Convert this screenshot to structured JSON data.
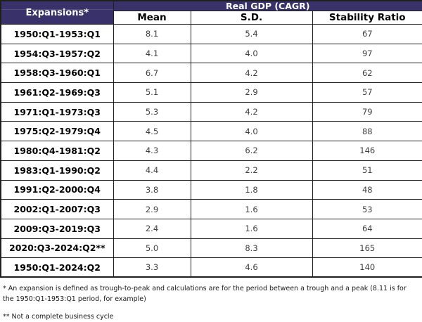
{
  "chart_data": {
    "type": "table",
    "corner_header": "Expansions*",
    "group_header": "Real GDP (CAGR)",
    "columns": [
      "Mean",
      "S.D.",
      "Stability Ratio"
    ],
    "rows": [
      {
        "period": "1950:Q1-1953:Q1",
        "mean": "8.1",
        "sd": "5.4",
        "stability_ratio": "67"
      },
      {
        "period": "1954:Q3-1957:Q2",
        "mean": "4.1",
        "sd": "4.0",
        "stability_ratio": "97"
      },
      {
        "period": "1958:Q3-1960:Q1",
        "mean": "6.7",
        "sd": "4.2",
        "stability_ratio": "62"
      },
      {
        "period": "1961:Q2-1969:Q3",
        "mean": "5.1",
        "sd": "2.9",
        "stability_ratio": "57"
      },
      {
        "period": "1971:Q1-1973:Q3",
        "mean": "5.3",
        "sd": "4.2",
        "stability_ratio": "79"
      },
      {
        "period": "1975:Q2-1979:Q4",
        "mean": "4.5",
        "sd": "4.0",
        "stability_ratio": "88"
      },
      {
        "period": "1980:Q4-1981:Q2",
        "mean": "4.3",
        "sd": "6.2",
        "stability_ratio": "146"
      },
      {
        "period": "1983:Q1-1990:Q2",
        "mean": "4.4",
        "sd": "2.2",
        "stability_ratio": "51"
      },
      {
        "period": "1991:Q2-2000:Q4",
        "mean": "3.8",
        "sd": "1.8",
        "stability_ratio": "48"
      },
      {
        "period": "2002:Q1-2007:Q3",
        "mean": "2.9",
        "sd": "1.6",
        "stability_ratio": "53"
      },
      {
        "period": "2009:Q3-2019:Q3",
        "mean": "2.4",
        "sd": "1.6",
        "stability_ratio": "64"
      },
      {
        "period": "2020:Q3-2024:Q2**",
        "mean": "5.0",
        "sd": "8.3",
        "stability_ratio": "165"
      },
      {
        "period": "1950:Q1-2024:Q2",
        "mean": "3.3",
        "sd": "4.6",
        "stability_ratio": "140"
      }
    ]
  },
  "footnotes": {
    "note1": "* An expansion is defined as trough-to-peak and calculations are for the period between a trough and a peak (8.11 is for the 1950:Q1-1953:Q1 period, for example)",
    "note2": "** Not a complete business cycle"
  },
  "colors": {
    "header_background": "#393169",
    "header_divider": "#57507f",
    "header_text": "#ffffff",
    "border": "#1f1f1f",
    "value_text": "#3f3f3f",
    "label_text": "#000000"
  }
}
